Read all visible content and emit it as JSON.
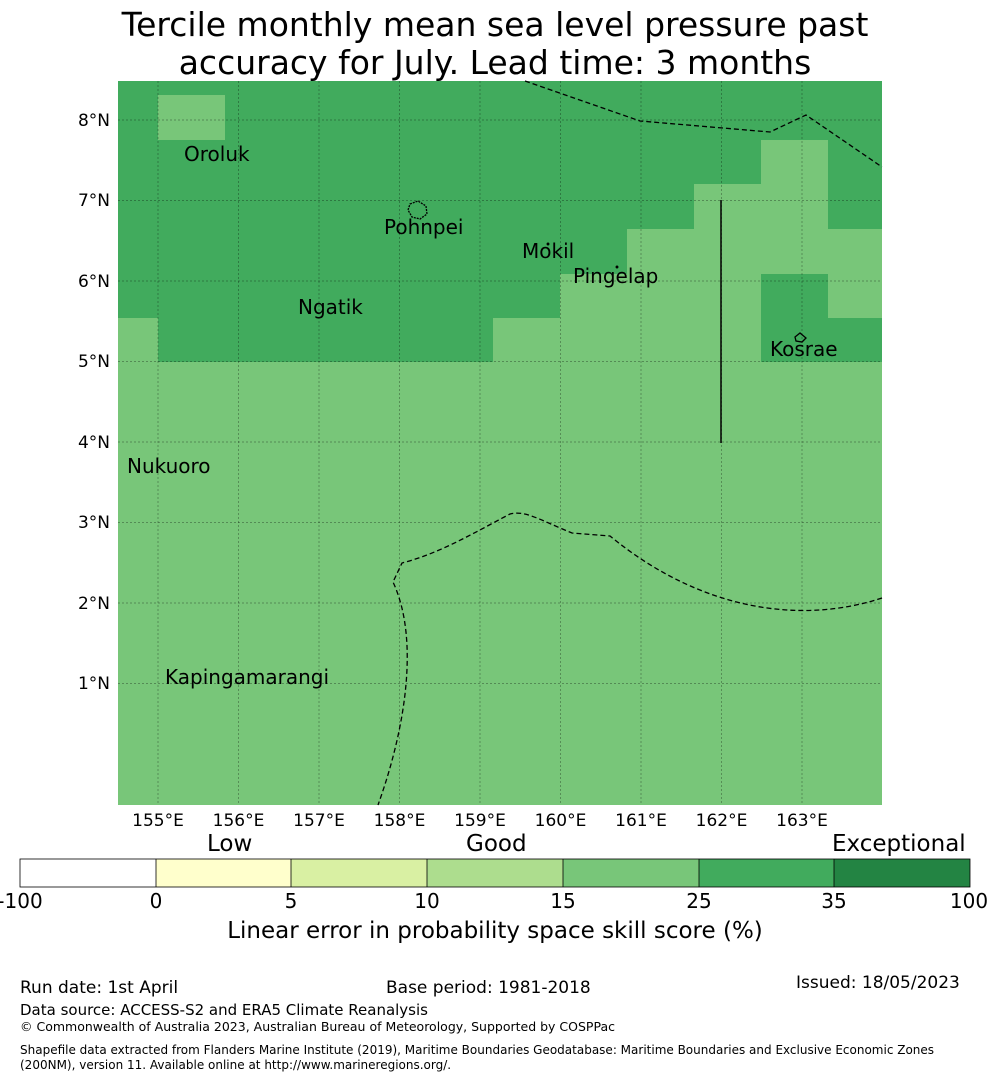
{
  "title": {
    "line1": "Tercile monthly mean sea level pressure past",
    "line2": "accuracy for July. Lead time: 3 months"
  },
  "map": {
    "lat_labels": [
      "8°N",
      "7°N",
      "6°N",
      "5°N",
      "4°N",
      "3°N",
      "2°N",
      "1°N"
    ],
    "lon_labels": [
      "155°E",
      "156°E",
      "157°E",
      "158°E",
      "159°E",
      "160°E",
      "161°E",
      "162°E",
      "163°E"
    ],
    "places": [
      "Oroluk",
      "Pohnpei",
      "Mokil",
      "Pingelap",
      "Ngatik",
      "Kosrae",
      "Nukuoro",
      "Kapingamarangi"
    ],
    "colors": {
      "c15_25": "#78c679",
      "c25_35": "#41ab5d",
      "c35_100": "#238443"
    }
  },
  "colorbar": {
    "captions": {
      "low": "Low",
      "good": "Good",
      "exceptional": "Exceptional"
    },
    "ticks": [
      "-100",
      "0",
      "5",
      "10",
      "15",
      "25",
      "35",
      "100"
    ],
    "colors": [
      "#ffffff",
      "#ffffcc",
      "#d9f0a3",
      "#addd8e",
      "#78c679",
      "#41ab5d",
      "#238443"
    ],
    "label": "Linear error in probability space skill score (%)"
  },
  "footer": {
    "run_date": "Run date: 1st April",
    "base_period": "Base period: 1981-2018",
    "issued": "Issued: 18/05/2023",
    "data_source": "Data source: ACCESS-S2 and ERA5 Climate Reanalysis",
    "copyright": "© Commonwealth of Australia 2023, Australian Bureau of Meteorology, Supported by COSPPac",
    "shapefile_line1": "Shapefile data extracted from Flanders Marine Institute (2019), Maritime Boundaries Geodatabase: Maritime Boundaries and Exclusive Economic Zones",
    "shapefile_line2": "(200NM), version 11. Available online at http://www.marineregions.org/."
  }
}
